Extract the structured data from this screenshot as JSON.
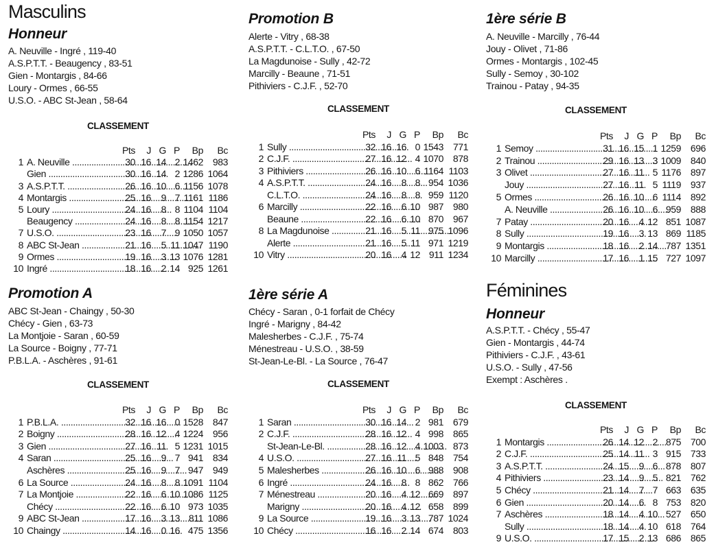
{
  "headers": [
    "Pts",
    "J",
    "G",
    "P",
    "Bp",
    "Bc"
  ],
  "classement_label": "CLASSEMENT",
  "masculins": {
    "title": "Masculins",
    "honneur": {
      "title": "Honneur",
      "results": [
        "A. Neuville  - Ingré , 119-40",
        "A.S.P.T.T.  - Beaugency , 83-51",
        "Gien  - Montargis , 84-66",
        "Loury  - Ormes , 66-55",
        "U.S.O.  - ABC St-Jean , 58-64"
      ],
      "standings": [
        [
          "1",
          "A. Neuville",
          "30",
          "16",
          "14",
          "2",
          "1462",
          "983"
        ],
        [
          "",
          "Gien",
          "30",
          "16",
          "14",
          "2",
          "1286",
          "1064"
        ],
        [
          "3",
          "A.S.P.T.T.",
          "26",
          "16",
          "10",
          "6",
          "1156",
          "1078"
        ],
        [
          "4",
          "Montargis",
          "25",
          "16",
          "9",
          "7",
          "1161",
          "1186"
        ],
        [
          "5",
          "Loury",
          "24",
          "16",
          "8",
          "8",
          "1104",
          "1104"
        ],
        [
          "",
          "Beaugency",
          "24",
          "16",
          "8",
          "8",
          "1154",
          "1217"
        ],
        [
          "7",
          "U.S.O.",
          "23",
          "16",
          "7",
          "9",
          "1050",
          "1057"
        ],
        [
          "8",
          "ABC St-Jean",
          "21",
          "16",
          "5",
          "11",
          "1047",
          "1190"
        ],
        [
          "9",
          "Ormes",
          "19",
          "16",
          "3",
          "13",
          "1076",
          "1281"
        ],
        [
          "10",
          "Ingré",
          "18",
          "16",
          "2",
          "14",
          "925",
          "1261"
        ]
      ]
    },
    "promotion_a": {
      "title": "Promotion A",
      "results": [
        "ABC St-Jean  - Chaingy , 50-30",
        "Chécy  - Gien , 63-73",
        "La Montjoie  - Saran , 60-59",
        "La Source  - Boigny , 77-71",
        "P.B.L.A.  - Aschères , 91-61"
      ],
      "standings": [
        [
          "1",
          "P.B.L.A.",
          "32",
          "16",
          "16",
          "0",
          "1528",
          "847"
        ],
        [
          "2",
          "Boigny",
          "28",
          "16",
          "12",
          "4",
          "1224",
          "956"
        ],
        [
          "3",
          "Gien",
          "27",
          "16",
          "11",
          "5",
          "1231",
          "1015"
        ],
        [
          "4",
          "Saran",
          "25",
          "16",
          "9",
          "7",
          "941",
          "834"
        ],
        [
          "",
          "Aschères",
          "25",
          "16",
          "9",
          "7",
          "947",
          "949"
        ],
        [
          "6",
          "La Source",
          "24",
          "16",
          "8",
          "8",
          "1091",
          "1104"
        ],
        [
          "7",
          "La Montjoie",
          "22",
          "16",
          "6",
          "10",
          "1086",
          "1125"
        ],
        [
          "",
          "Chécy",
          "22",
          "16",
          "6",
          "10",
          "973",
          "1035"
        ],
        [
          "9",
          "ABC St-Jean",
          "17",
          "16",
          "3",
          "13",
          "811",
          "1086"
        ],
        [
          "10",
          "Chaingy",
          "14",
          "16",
          "0",
          "16",
          "475",
          "1356"
        ]
      ]
    },
    "promotion_b": {
      "title": "Promotion B",
      "results": [
        "Alerte  - Vitry , 68-38",
        "A.S.P.T.T.  - C.L.T.O. , 67-50",
        "La Magdunoise  - Sully , 42-72",
        "Marcilly  - Beaune , 71-51",
        "Pithiviers  - C.J.F. , 52-70"
      ],
      "standings": [
        [
          "1",
          "Sully",
          "32",
          "16",
          "16",
          "0",
          "1543",
          "771"
        ],
        [
          "2",
          "C.J.F.",
          "27",
          "16",
          "12",
          "4",
          "1070",
          "878"
        ],
        [
          "3",
          "Pithiviers",
          "26",
          "16",
          "10",
          "6",
          "1164",
          "1103"
        ],
        [
          "4",
          "A.S.P.T.T.",
          "24",
          "16",
          "8",
          "8",
          "954",
          "1036"
        ],
        [
          "",
          "C.L.T.O.",
          "24",
          "16",
          "8",
          "8",
          "959",
          "1120"
        ],
        [
          "6",
          "Marcilly",
          "22",
          "16",
          "6",
          "10",
          "987",
          "980"
        ],
        [
          "",
          "Beaune",
          "22",
          "16",
          "6",
          "10",
          "870",
          "967"
        ],
        [
          "8",
          "La Magdunoise",
          "21",
          "16",
          "5",
          "11",
          "975",
          "1096"
        ],
        [
          "",
          "Alerte",
          "21",
          "16",
          "5",
          "11",
          "971",
          "1219"
        ],
        [
          "10",
          "Vitry",
          "20",
          "16",
          "4",
          "12",
          "911",
          "1234"
        ]
      ]
    },
    "serie_1a": {
      "title": "1ère série A",
      "results": [
        "Chécy  - Saran , 0-1   forfait de Chécy",
        "Ingré  - Marigny , 84-42",
        "Malesherbes  - C.J.F. , 75-74",
        "Ménestreau  - U.S.O. , 38-59",
        "St-Jean-Le-Bl.  - La Source , 76-47"
      ],
      "standings": [
        [
          "1",
          "Saran",
          "30",
          "16",
          "14",
          "2",
          "981",
          "679"
        ],
        [
          "2",
          "C.J.F.",
          "28",
          "16",
          "12",
          "4",
          "998",
          "865"
        ],
        [
          "",
          "St-Jean-Le-Bl.",
          "28",
          "16",
          "12",
          "4",
          "1003",
          "873"
        ],
        [
          "4",
          "U.S.O.",
          "27",
          "16",
          "11",
          "5",
          "848",
          "754"
        ],
        [
          "5",
          "Malesherbes",
          "26",
          "16",
          "10",
          "6",
          "988",
          "908"
        ],
        [
          "6",
          "Ingré",
          "24",
          "16",
          "8",
          "8",
          "862",
          "766"
        ],
        [
          "7",
          "Ménestreau",
          "20",
          "16",
          "4",
          "12",
          "669",
          "897"
        ],
        [
          "",
          "Marigny",
          "20",
          "16",
          "4",
          "12",
          "658",
          "899"
        ],
        [
          "9",
          "La Source",
          "19",
          "16",
          "3",
          "13",
          "787",
          "1024"
        ],
        [
          "10",
          "Chécy",
          "16",
          "16",
          "2",
          "14",
          "674",
          "803"
        ]
      ]
    },
    "serie_1b": {
      "title": "1ère série B",
      "results": [
        "A. Neuville  - Marcilly , 76-44",
        "Jouy  - Olivet , 71-86",
        "Ormes  - Montargis , 102-45",
        "Sully  - Semoy , 30-102",
        "Trainou  - Patay , 94-35"
      ],
      "standings": [
        [
          "1",
          "Semoy",
          "31",
          "16",
          "15",
          "1",
          "1259",
          "696"
        ],
        [
          "2",
          "Trainou",
          "29",
          "16",
          "13",
          "3",
          "1009",
          "840"
        ],
        [
          "3",
          "Olivet",
          "27",
          "16",
          "11",
          "5",
          "1176",
          "897"
        ],
        [
          "",
          "Jouy",
          "27",
          "16",
          "11",
          "5",
          "1119",
          "937"
        ],
        [
          "5",
          "Ormes",
          "26",
          "16",
          "10",
          "6",
          "1114",
          "892"
        ],
        [
          "",
          "A. Neuville",
          "26",
          "16",
          "10",
          "6",
          "959",
          "888"
        ],
        [
          "7",
          "Patay",
          "20",
          "16",
          "4",
          "12",
          "851",
          "1087"
        ],
        [
          "8",
          "Sully",
          "19",
          "16",
          "3",
          "13",
          "869",
          "1185"
        ],
        [
          "9",
          "Montargis",
          "18",
          "16",
          "2",
          "14",
          "787",
          "1351"
        ],
        [
          "10",
          "Marcilly",
          "17",
          "16",
          "1",
          "15",
          "727",
          "1097"
        ]
      ]
    }
  },
  "feminines": {
    "title": "Féminines",
    "honneur": {
      "title": "Honneur",
      "results": [
        "A.S.P.T.T.  - Chécy , 55-47",
        "Gien  - Montargis , 44-74",
        "Pithiviers  - C.J.F. , 43-61",
        "U.S.O.  - Sully , 47-56",
        "Exempt : Aschères ."
      ],
      "standings": [
        [
          "1",
          "Montargis",
          "26",
          "14",
          "12",
          "2",
          "875",
          "700"
        ],
        [
          "2",
          "C.J.F.",
          "25",
          "14",
          "11",
          "3",
          "915",
          "733"
        ],
        [
          "3",
          "A.S.P.T.T.",
          "24",
          "15",
          "9",
          "6",
          "878",
          "807"
        ],
        [
          "4",
          "Pithiviers",
          "23",
          "14",
          "9",
          "5",
          "821",
          "762"
        ],
        [
          "5",
          "Chécy",
          "21",
          "14",
          "7",
          "7",
          "663",
          "635"
        ],
        [
          "6",
          "Gien",
          "20",
          "14",
          "6",
          "8",
          "753",
          "820"
        ],
        [
          "7",
          "Aschères",
          "18",
          "14",
          "4",
          "10",
          "527",
          "650"
        ],
        [
          "",
          "Sully",
          "18",
          "14",
          "4",
          "10",
          "618",
          "764"
        ],
        [
          "9",
          "U.S.O.",
          "17",
          "15",
          "2",
          "13",
          "686",
          "865"
        ]
      ]
    }
  }
}
